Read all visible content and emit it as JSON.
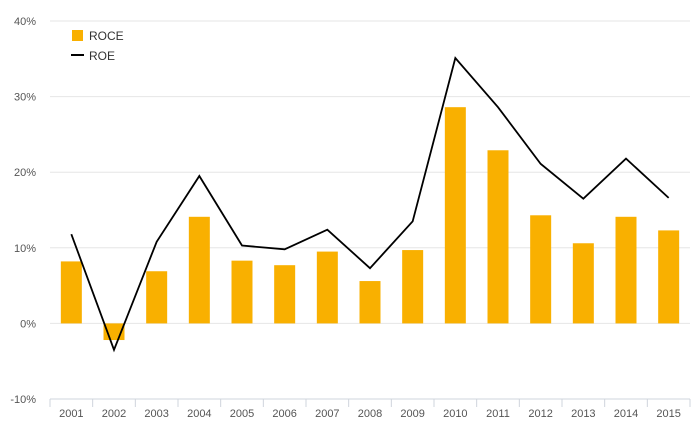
{
  "chart_data": {
    "type": "bar",
    "categories": [
      "2001",
      "2002",
      "2003",
      "2004",
      "2005",
      "2006",
      "2007",
      "2008",
      "2009",
      "2010",
      "2011",
      "2012",
      "2013",
      "2014",
      "2015"
    ],
    "series": [
      {
        "name": "ROCE",
        "type": "bar",
        "color": "#F9B000",
        "values": [
          8.2,
          -2.2,
          6.9,
          14.1,
          8.3,
          7.7,
          9.5,
          5.6,
          9.7,
          28.6,
          22.9,
          14.3,
          10.6,
          14.1,
          12.3
        ]
      },
      {
        "name": "ROE",
        "type": "line",
        "color": "#000000",
        "values": [
          11.8,
          -3.5,
          10.8,
          19.5,
          10.3,
          9.8,
          12.4,
          7.3,
          13.5,
          35.1,
          28.6,
          21.1,
          16.5,
          21.8,
          16.6
        ]
      }
    ],
    "y_ticks": [
      "40%",
      "30%",
      "20%",
      "10%",
      "0%",
      "-10%"
    ],
    "ylim": [
      -10,
      40
    ],
    "grid": true,
    "legend_position": "top-left"
  }
}
